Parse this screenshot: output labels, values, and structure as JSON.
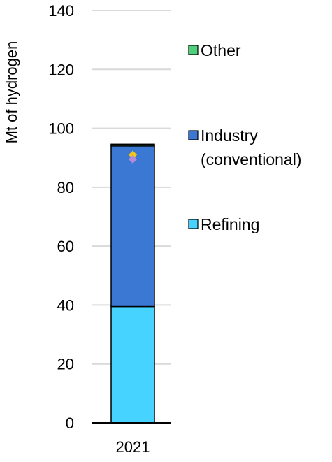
{
  "chart_data": {
    "type": "bar",
    "stacked": true,
    "title": "",
    "xlabel": "",
    "ylabel": "Mt of hydrogen",
    "categories": [
      "2021"
    ],
    "ylim": [
      0,
      140
    ],
    "yticks": [
      0,
      20,
      40,
      60,
      80,
      100,
      120,
      140
    ],
    "grid": true,
    "legend_position": "right",
    "series": [
      {
        "name": "Refining",
        "values": [
          39.5
        ],
        "color": "#47d3ff"
      },
      {
        "name": "Industry (conventional)",
        "name_lines": [
          "Industry",
          "(conventional)"
        ],
        "values": [
          54.5
        ],
        "color": "#3a78d4"
      },
      {
        "name": "Other",
        "values": [
          0.6
        ],
        "color": "#4fd17b"
      }
    ],
    "markers": [
      {
        "category": "2021",
        "value": 91,
        "color": "#f5c518",
        "shape": "diamond"
      },
      {
        "category": "2021",
        "value": 89.5,
        "color": "#b38bd9",
        "shape": "diamond"
      }
    ]
  }
}
